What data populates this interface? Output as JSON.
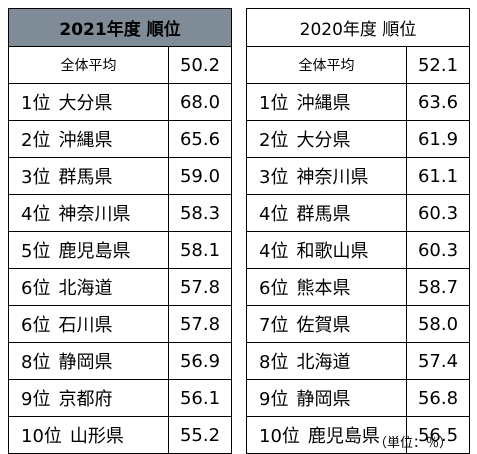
{
  "table_2021": {
    "title": "2021年度 順位",
    "average": {
      "label": "全体平均",
      "value": "50.2"
    },
    "rows": [
      {
        "rank": "1位",
        "pref": "大分県",
        "value": "68.0"
      },
      {
        "rank": "2位",
        "pref": "沖縄県",
        "value": "65.6"
      },
      {
        "rank": "3位",
        "pref": "群馬県",
        "value": "59.0"
      },
      {
        "rank": "4位",
        "pref": "神奈川県",
        "value": "58.3"
      },
      {
        "rank": "5位",
        "pref": "鹿児島県",
        "value": "58.1"
      },
      {
        "rank": "6位",
        "pref": "北海道",
        "value": "57.8"
      },
      {
        "rank": "6位",
        "pref": "石川県",
        "value": "57.8"
      },
      {
        "rank": "8位",
        "pref": "静岡県",
        "value": "56.9"
      },
      {
        "rank": "9位",
        "pref": "京都府",
        "value": "56.1"
      },
      {
        "rank": "10位",
        "pref": "山形県",
        "value": "55.2"
      }
    ]
  },
  "table_2020": {
    "title": "2020年度 順位",
    "average": {
      "label": "全体平均",
      "value": "52.1"
    },
    "rows": [
      {
        "rank": "1位",
        "pref": "沖縄県",
        "value": "63.6"
      },
      {
        "rank": "2位",
        "pref": "大分県",
        "value": "61.9"
      },
      {
        "rank": "3位",
        "pref": "神奈川県",
        "value": "61.1"
      },
      {
        "rank": "4位",
        "pref": "群馬県",
        "value": "60.3"
      },
      {
        "rank": "4位",
        "pref": "和歌山県",
        "value": "60.3"
      },
      {
        "rank": "6位",
        "pref": "熊本県",
        "value": "58.7"
      },
      {
        "rank": "7位",
        "pref": "佐賀県",
        "value": "58.0"
      },
      {
        "rank": "8位",
        "pref": "北海道",
        "value": "57.4"
      },
      {
        "rank": "9位",
        "pref": "静岡県",
        "value": "56.8"
      },
      {
        "rank": "10位",
        "pref": "鹿児島県",
        "value": "56.5"
      }
    ]
  },
  "unit_note": "（単位：％）",
  "colors": {
    "header_2021_bg": "#7f8c97",
    "border": "#000000"
  }
}
